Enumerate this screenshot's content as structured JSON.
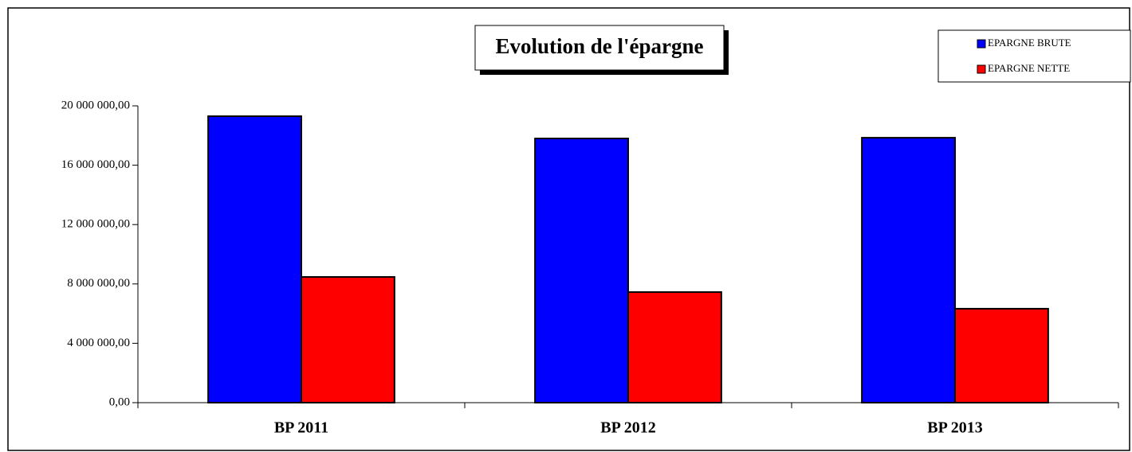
{
  "chart_data": {
    "type": "bar",
    "title": "Evolution de l'épargne",
    "categories": [
      "BP 2011",
      "BP 2012",
      "BP 2013"
    ],
    "series": [
      {
        "name": "EPARGNE BRUTE",
        "color": "#0000ff",
        "values": [
          19300000,
          17800000,
          17850000
        ]
      },
      {
        "name": "EPARGNE NETTE",
        "color": "#ff0000",
        "values": [
          8470000,
          7450000,
          6330000
        ]
      }
    ],
    "ylim": [
      0,
      20000000
    ],
    "yticks": [
      {
        "value": 0,
        "label": "0,00"
      },
      {
        "value": 4000000,
        "label": "4 000 000,00"
      },
      {
        "value": 8000000,
        "label": "8 000 000,00"
      },
      {
        "value": 12000000,
        "label": "12 000 000,00"
      },
      {
        "value": 16000000,
        "label": "16 000 000,00"
      },
      {
        "value": 20000000,
        "label": "20 000 000,00"
      }
    ],
    "legend": "upper right"
  }
}
